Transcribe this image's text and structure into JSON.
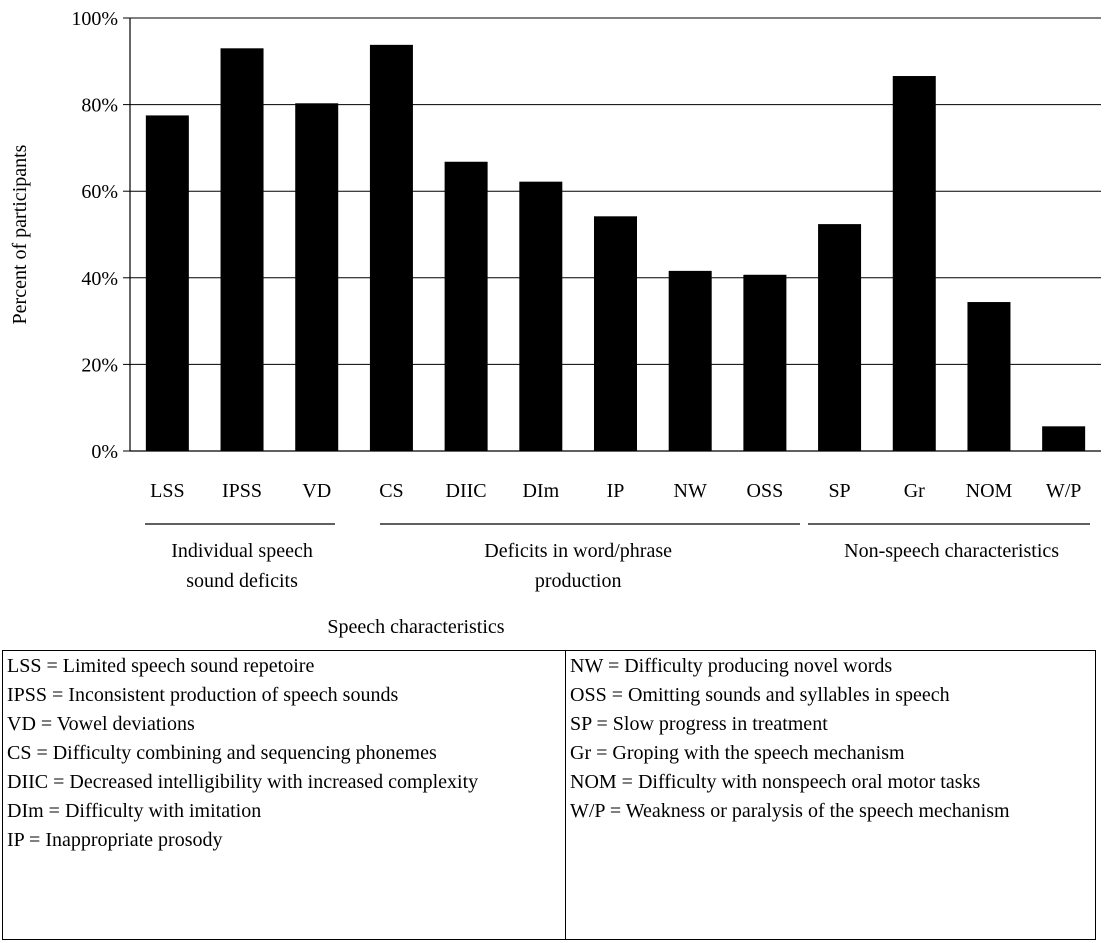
{
  "chart_data": {
    "type": "bar",
    "categories": [
      "LSS",
      "IPSS",
      "VD",
      "CS",
      "DIIC",
      "DIm",
      "IP",
      "NW",
      "OSS",
      "SP",
      "Gr",
      "NOM",
      "W/P"
    ],
    "values": [
      77.5,
      93,
      80.3,
      93.8,
      66.8,
      62.2,
      54.2,
      41.6,
      40.7,
      52.4,
      86.6,
      34.4,
      5.7
    ],
    "ylabel": "Percent of participants",
    "xlabel": "Speech characteristics",
    "ylim": [
      0,
      100
    ],
    "yticks": [
      "0%",
      "20%",
      "40%",
      "60%",
      "80%",
      "100%"
    ],
    "grid": true,
    "bar_color": "#000000",
    "groups": [
      {
        "label_lines": [
          "Individual speech",
          "sound deficits"
        ],
        "start": 0,
        "end": 2
      },
      {
        "label_lines": [
          "Deficits in word/phrase",
          "production"
        ],
        "start": 3,
        "end": 8
      },
      {
        "label_lines": [
          "Non-speech characteristics"
        ],
        "start": 9,
        "end": 12
      }
    ]
  },
  "legend": {
    "left": [
      "LSS = Limited speech sound repetoire",
      "IPSS = Inconsistent production of speech sounds",
      "VD = Vowel deviations",
      "CS = Difficulty combining and sequencing phonemes",
      "DIIC = Decreased intelligibility with increased complexity",
      "DIm = Difficulty with imitation",
      "IP = Inappropriate prosody"
    ],
    "right": [
      "NW = Difficulty producing novel words",
      "OSS = Omitting sounds and syllables in speech",
      "SP = Slow progress in treatment",
      "Gr = Groping with the speech mechanism",
      "NOM = Difficulty with nonspeech oral motor tasks",
      "W/P = Weakness or paralysis of the speech mechanism"
    ]
  }
}
